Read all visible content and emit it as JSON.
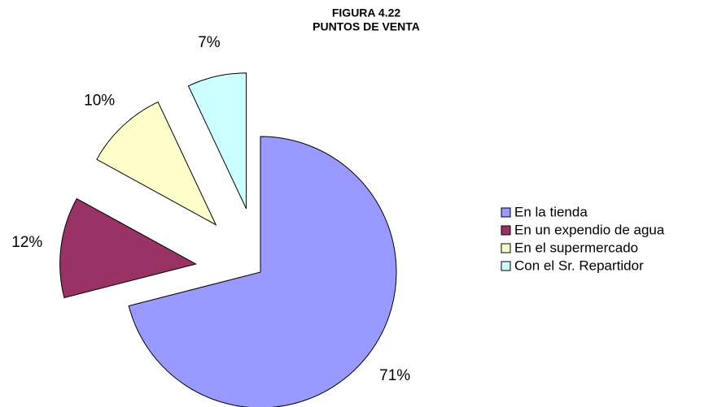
{
  "chart_data": {
    "type": "pie",
    "title": [
      "FIGURA 4.22",
      "PUNTOS DE VENTA"
    ],
    "categories": [
      "En la tienda",
      "En un expendio de agua",
      "En el supermercado",
      "Con el Sr. Repartidor"
    ],
    "values": [
      71,
      12,
      10,
      7
    ],
    "value_labels": [
      "71%",
      "12%",
      "10%",
      "7%"
    ],
    "colors": [
      "#9999ff",
      "#993366",
      "#ffffcc",
      "#ccffff"
    ],
    "exploded": [
      false,
      true,
      true,
      true
    ],
    "legend": "right"
  }
}
